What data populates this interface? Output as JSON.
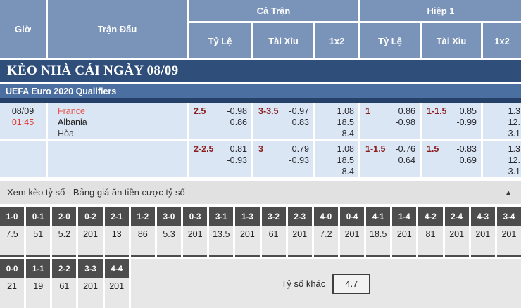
{
  "table_header": {
    "time": "Giờ",
    "match": "Trận Đấu",
    "full_match": "Cả Trận",
    "first_half": "Hiệp 1",
    "handicap": "Tỷ Lệ",
    "over_under": "Tài Xỉu",
    "one_x_two": "1x2"
  },
  "banner": {
    "title": "KÈO NHÀ CÁI NGÀY 08/09"
  },
  "league": {
    "name": "UEFA Euro 2020 Qualifiers"
  },
  "match": {
    "date": "08/09",
    "time": "01:45",
    "home": "France",
    "away": "Albania",
    "draw": "Hòa"
  },
  "odds": {
    "rows": [
      {
        "ft_hdp_line": "2.5",
        "ft_hdp_top": "-0.98",
        "ft_hdp_bot": "0.86",
        "ft_ou_line": "3-3.5",
        "ft_ou_top": "-0.97",
        "ft_ou_bot": "0.83",
        "ft_1x2": [
          "1.08",
          "18.5",
          "8.4"
        ],
        "h1_hdp_line": "1",
        "h1_hdp_top": "0.86",
        "h1_hdp_bot": "-0.98",
        "h1_ou_line": "1-1.5",
        "h1_ou_top": "0.85",
        "h1_ou_bot": "-0.99",
        "h1_1x2": [
          "1.3",
          "12.",
          "3.1"
        ]
      },
      {
        "ft_hdp_line": "2-2.5",
        "ft_hdp_top": "0.81",
        "ft_hdp_bot": "-0.93",
        "ft_ou_line": "3",
        "ft_ou_top": "0.79",
        "ft_ou_bot": "-0.93",
        "ft_1x2": [
          "1.08",
          "18.5",
          "8.4"
        ],
        "h1_hdp_line": "1-1.5",
        "h1_hdp_top": "-0.76",
        "h1_hdp_bot": "0.64",
        "h1_ou_line": "1.5",
        "h1_ou_top": "-0.83",
        "h1_ou_bot": "0.69",
        "h1_1x2": [
          "1.3",
          "12.",
          "3.1"
        ]
      }
    ]
  },
  "score_section": {
    "title": "Xem kèo tỷ số - Bảng giá ăn tiền cược tỷ số",
    "collapse_icon": "▲",
    "row1_scores": [
      "1-0",
      "0-1",
      "2-0",
      "0-2",
      "2-1",
      "1-2",
      "3-0",
      "0-3",
      "3-1",
      "1-3",
      "3-2",
      "2-3",
      "4-0",
      "0-4",
      "4-1",
      "1-4",
      "4-2",
      "2-4",
      "4-3",
      "3-4"
    ],
    "row1_odds": [
      "7.5",
      "51",
      "5.2",
      "201",
      "13",
      "86",
      "5.3",
      "201",
      "13.5",
      "201",
      "61",
      "201",
      "7.2",
      "201",
      "18.5",
      "201",
      "81",
      "201",
      "201",
      "201"
    ],
    "row2_scores": [
      "0-0",
      "1-1",
      "2-2",
      "3-3",
      "4-4"
    ],
    "row2_odds": [
      "21",
      "19",
      "61",
      "201",
      "201"
    ],
    "other_label": "Tỷ số khác",
    "other_value": "4.7"
  },
  "colors": {
    "header_blue": "#7a93b8",
    "banner_navy": "#2f4e7a",
    "league_blue": "#4b6fa0",
    "divider_navy": "#254169",
    "row_light_blue": "#dbe6f4",
    "handicap_maroon": "#8b1e1e",
    "time_red": "#e03a36",
    "home_team_red": "#e8554e",
    "section_gray": "#e1e1e1",
    "score_header_dark": "#4d4d4d",
    "score_cell_gray": "#e7e7e7"
  }
}
